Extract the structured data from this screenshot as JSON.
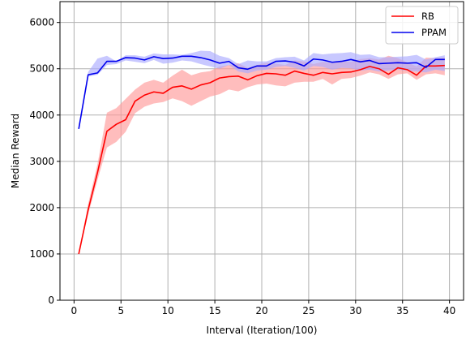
{
  "chart_data": {
    "type": "line",
    "xlabel": "Interval (Iteration/100)",
    "ylabel": "Median Reward",
    "xlim": [
      -1.5,
      41.5
    ],
    "ylim": [
      0,
      6450
    ],
    "xticks": [
      0,
      5,
      10,
      15,
      20,
      25,
      30,
      35,
      40
    ],
    "yticks": [
      0,
      1000,
      2000,
      3000,
      4000,
      5000,
      6000
    ],
    "grid": true,
    "legend_position": "top-right",
    "series": [
      {
        "name": "RB",
        "color": "#ff0000",
        "band_color": "#ff9999",
        "x": [
          0.5,
          1.5,
          2.5,
          3.5,
          4.5,
          5.5,
          6.5,
          7.5,
          8.5,
          9.5,
          10.5,
          11.5,
          12.5,
          13.5,
          14.5,
          15.5,
          16.5,
          17.5,
          18.5,
          19.5,
          20.5,
          21.5,
          22.5,
          23.5,
          24.5,
          25.5,
          26.5,
          27.5,
          28.5,
          29.5,
          30.5,
          31.5,
          32.5,
          33.5,
          34.5,
          35.5,
          36.5,
          37.5,
          38.5,
          39.5
        ],
        "values": [
          1000,
          1950,
          2760,
          3650,
          3800,
          3900,
          4300,
          4430,
          4500,
          4470,
          4600,
          4630,
          4560,
          4650,
          4700,
          4800,
          4830,
          4840,
          4760,
          4850,
          4900,
          4890,
          4860,
          4950,
          4900,
          4860,
          4920,
          4890,
          4920,
          4930,
          4980,
          5050,
          5000,
          4880,
          5020,
          4980,
          4860,
          5060,
          5060,
          5070
        ],
        "lower": [
          1000,
          1850,
          2600,
          3300,
          3420,
          3640,
          4040,
          4180,
          4250,
          4280,
          4360,
          4300,
          4200,
          4300,
          4400,
          4450,
          4550,
          4510,
          4600,
          4660,
          4680,
          4640,
          4620,
          4700,
          4720,
          4720,
          4780,
          4660,
          4780,
          4800,
          4850,
          4920,
          4880,
          4780,
          4880,
          4900,
          4760,
          4880,
          4900,
          4860
        ],
        "upper": [
          1000,
          2080,
          2940,
          4050,
          4150,
          4350,
          4550,
          4700,
          4760,
          4700,
          4850,
          4980,
          4860,
          4920,
          4950,
          5050,
          5080,
          5120,
          5020,
          5080,
          5130,
          5110,
          5080,
          5180,
          5160,
          5100,
          5150,
          5120,
          5160,
          5150,
          5210,
          5230,
          5200,
          5280,
          5230,
          5140,
          5050,
          5240,
          5230,
          5240
        ]
      },
      {
        "name": "PPAM",
        "color": "#0000ee",
        "band_color": "#aaaaff",
        "x": [
          0.5,
          1.5,
          2.5,
          3.5,
          4.5,
          5.5,
          6.5,
          7.5,
          8.5,
          9.5,
          10.5,
          11.5,
          12.5,
          13.5,
          14.5,
          15.5,
          16.5,
          17.5,
          18.5,
          19.5,
          20.5,
          21.5,
          22.5,
          23.5,
          24.5,
          25.5,
          26.5,
          27.5,
          28.5,
          29.5,
          30.5,
          31.5,
          32.5,
          33.5,
          34.5,
          35.5,
          36.5,
          37.5,
          38.5,
          39.5
        ],
        "values": [
          3700,
          4870,
          4910,
          5160,
          5160,
          5240,
          5230,
          5190,
          5260,
          5220,
          5230,
          5270,
          5270,
          5240,
          5190,
          5120,
          5160,
          5020,
          4990,
          5060,
          5060,
          5160,
          5170,
          5140,
          5060,
          5210,
          5190,
          5140,
          5160,
          5200,
          5150,
          5180,
          5110,
          5120,
          5130,
          5120,
          5130,
          5030,
          5200,
          5200
        ],
        "lower": [
          3700,
          4830,
          4870,
          5080,
          5100,
          5180,
          5150,
          5120,
          5190,
          5110,
          5130,
          5180,
          5160,
          5100,
          5050,
          5000,
          5080,
          4940,
          4900,
          4960,
          4980,
          5040,
          5060,
          5020,
          4960,
          5060,
          5040,
          4980,
          5020,
          5010,
          4960,
          4980,
          4940,
          4960,
          4980,
          4960,
          4940,
          4920,
          4980,
          4950
        ],
        "upper": [
          3700,
          4930,
          5220,
          5280,
          5160,
          5290,
          5290,
          5260,
          5330,
          5310,
          5310,
          5300,
          5340,
          5390,
          5380,
          5280,
          5230,
          5100,
          5180,
          5160,
          5160,
          5230,
          5250,
          5260,
          5180,
          5340,
          5310,
          5330,
          5340,
          5360,
          5300,
          5310,
          5250,
          5250,
          5260,
          5270,
          5300,
          5200,
          5250,
          5290
        ]
      }
    ]
  }
}
